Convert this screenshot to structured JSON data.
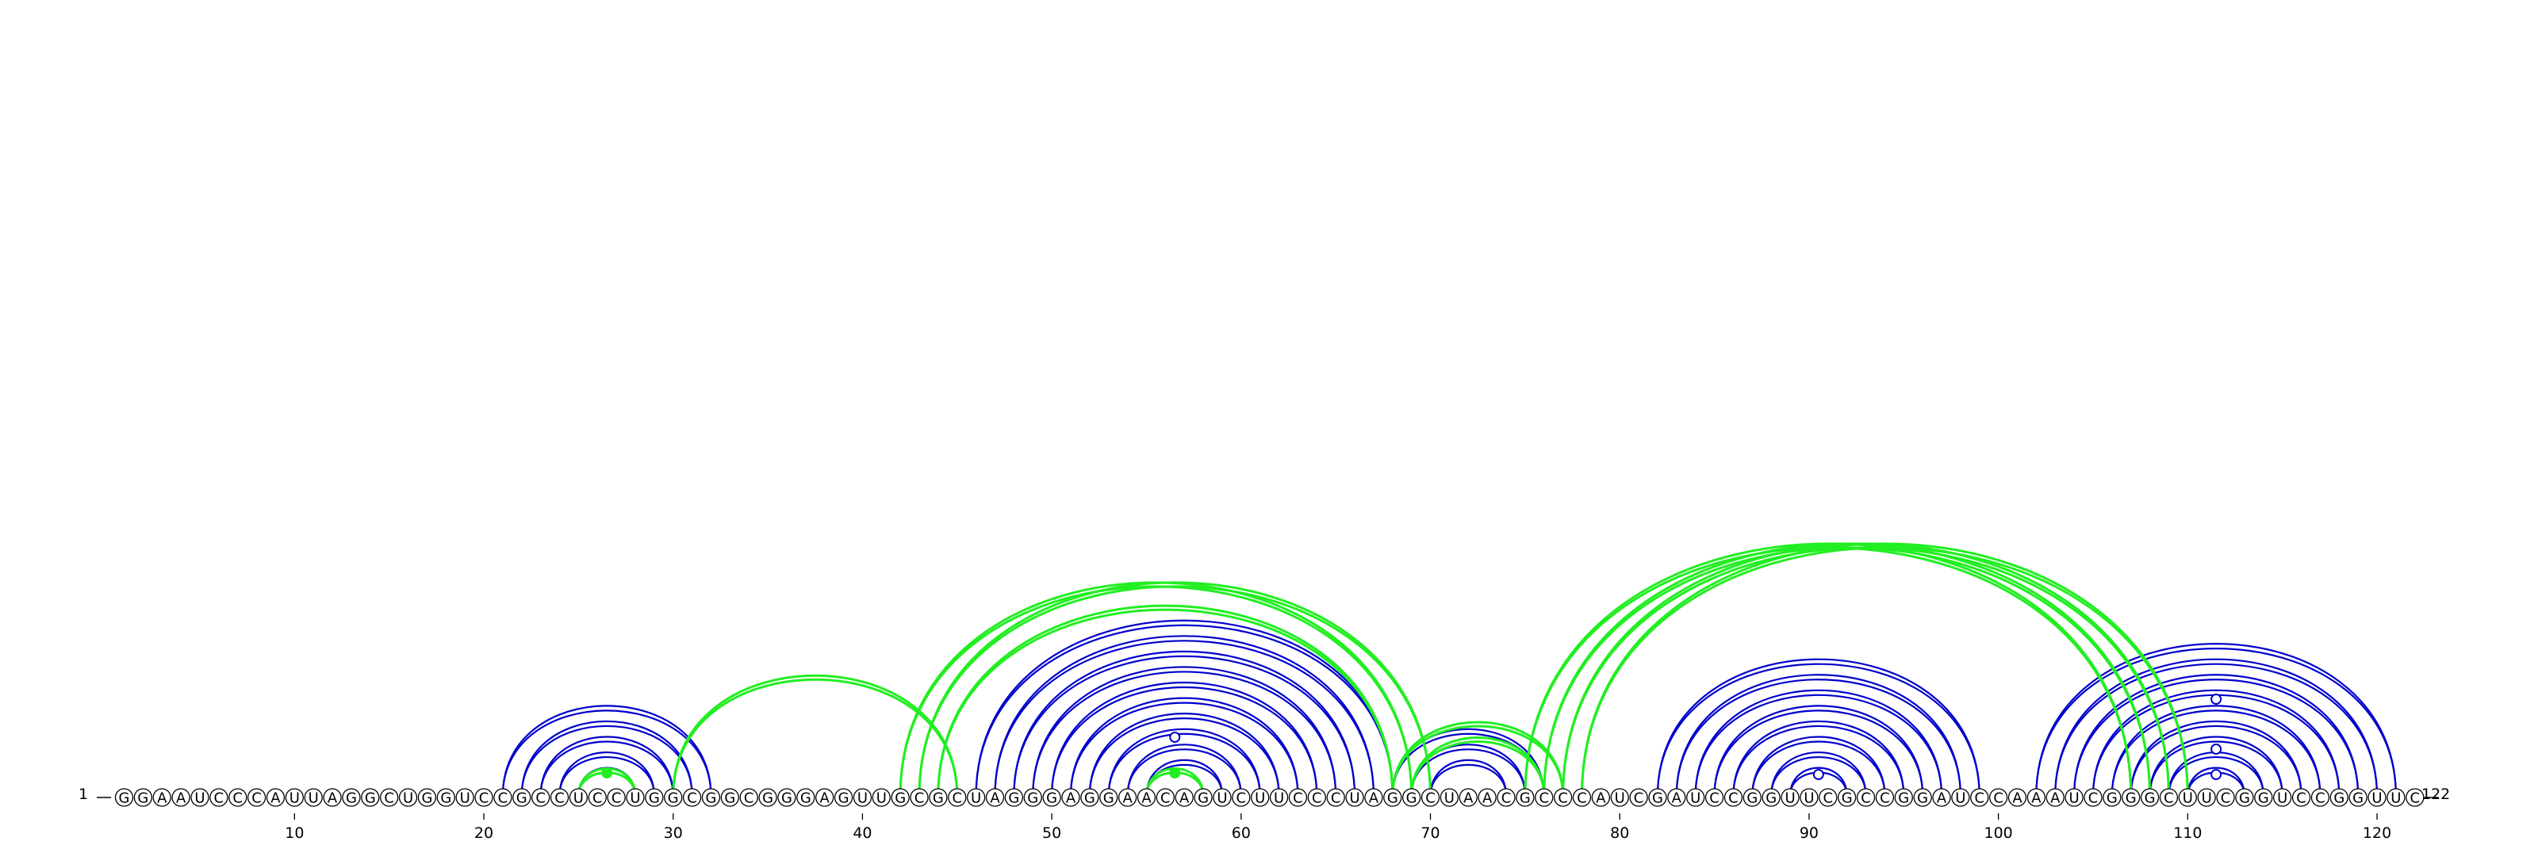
{
  "diagram": {
    "type": "rna-arc-diagram",
    "sequence": "GGAAUCCCAUUAGGCUGGUCCGCCUCCUGGCGGCGGGAGUUGCGCUAGGGAGGAACAGUCUUCCCUAGGCUAACGCCCAUCGAUCCGGUUCGCCGGAUCCAAAUCGGGCUUCGGUCCGGUUC",
    "start_label": "1",
    "end_label": "122",
    "tick_labels": [
      "10",
      "20",
      "30",
      "40",
      "50",
      "60",
      "70",
      "80",
      "90",
      "100",
      "110",
      "120"
    ],
    "colors": {
      "blue_arc": "#0000cc",
      "green_arc": "#22ee22",
      "circle_fill": "#ffffff",
      "circle_stroke": "#000000"
    },
    "blue_pairs": [
      [
        21,
        32
      ],
      [
        22,
        31
      ],
      [
        23,
        30
      ],
      [
        24,
        29
      ],
      [
        25,
        28
      ],
      [
        46,
        68
      ],
      [
        47,
        67
      ],
      [
        48,
        66
      ],
      [
        49,
        65
      ],
      [
        50,
        64
      ],
      [
        51,
        63
      ],
      [
        52,
        62
      ],
      [
        53,
        61
      ],
      [
        54,
        60
      ],
      [
        55,
        59
      ],
      [
        68,
        76
      ],
      [
        69,
        75
      ],
      [
        70,
        74
      ],
      [
        82,
        99
      ],
      [
        83,
        98
      ],
      [
        84,
        97
      ],
      [
        85,
        96
      ],
      [
        86,
        95
      ],
      [
        87,
        94
      ],
      [
        88,
        93
      ],
      [
        89,
        92
      ],
      [
        102,
        121
      ],
      [
        103,
        120
      ],
      [
        104,
        119
      ],
      [
        105,
        118
      ],
      [
        106,
        117
      ],
      [
        107,
        116
      ],
      [
        108,
        115
      ],
      [
        109,
        114
      ],
      [
        110,
        113
      ]
    ],
    "green_pairs": [
      [
        25,
        28
      ],
      [
        30,
        45
      ],
      [
        42,
        69
      ],
      [
        43,
        70
      ],
      [
        44,
        68
      ],
      [
        55,
        58
      ],
      [
        68,
        77
      ],
      [
        69,
        76
      ],
      [
        75,
        107
      ],
      [
        76,
        108
      ],
      [
        77,
        109
      ],
      [
        78,
        110
      ]
    ],
    "markers": [
      {
        "pos": 26.5,
        "style": "filled",
        "color": "green"
      },
      {
        "pos": 56.5,
        "style": "filled",
        "color": "green"
      },
      {
        "pos": 56.5,
        "style": "open",
        "color": "blue"
      },
      {
        "pos": 90.5,
        "style": "open",
        "color": "blue"
      },
      {
        "pos": 111.5,
        "style": "open",
        "color": "blue"
      }
    ]
  }
}
